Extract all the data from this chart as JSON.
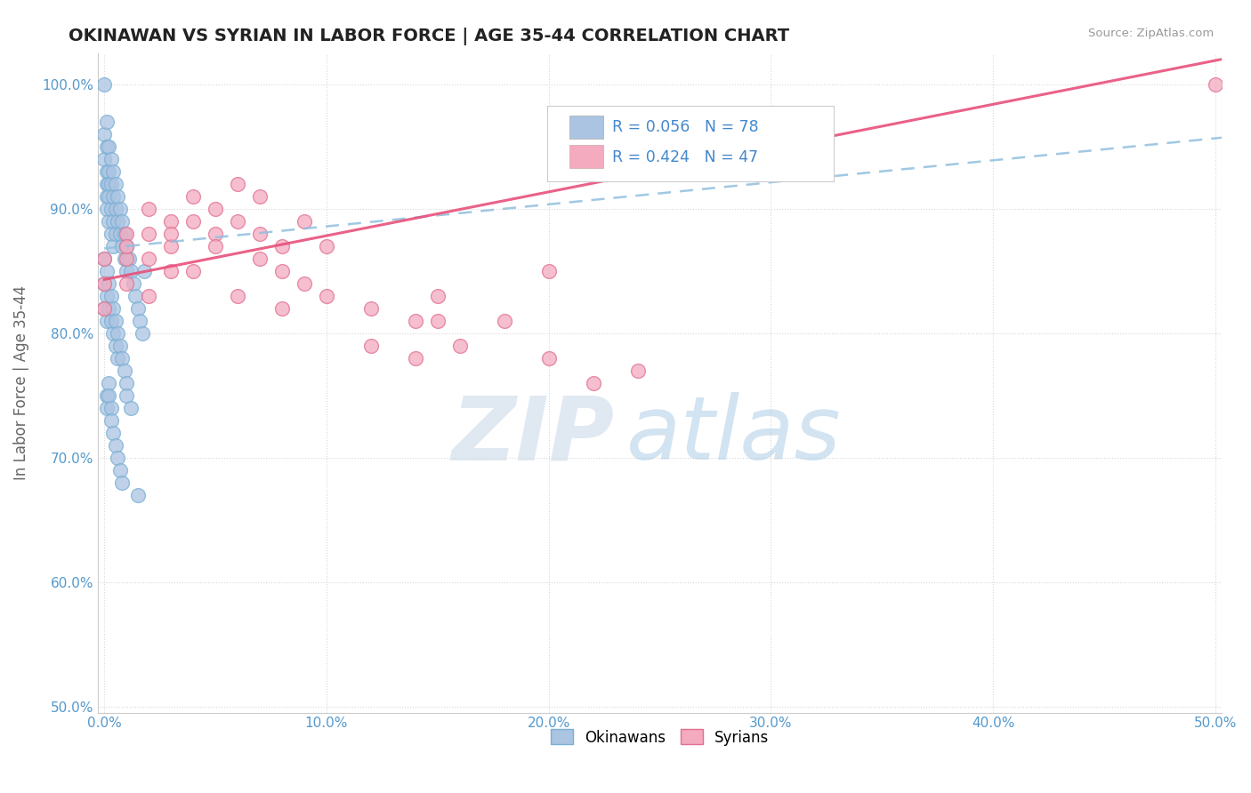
{
  "title": "OKINAWAN VS SYRIAN IN LABOR FORCE | AGE 35-44 CORRELATION CHART",
  "source": "Source: ZipAtlas.com",
  "ylabel": "In Labor Force | Age 35-44",
  "okinawan_color": "#aac4e2",
  "okinawan_edge": "#7aafd4",
  "syrian_color": "#f4aabf",
  "syrian_edge": "#e07090",
  "okinawan_line_color": "#90bfdf",
  "syrian_line_color": "#e8507a",
  "R_okinawan": 0.056,
  "N_okinawan": 78,
  "R_syrian": 0.424,
  "N_syrian": 47,
  "xlim": [
    -0.003,
    0.503
  ],
  "ylim": [
    0.495,
    1.025
  ],
  "x_ticks": [
    0.0,
    0.1,
    0.2,
    0.3,
    0.4,
    0.5
  ],
  "y_ticks": [
    0.5,
    0.6,
    0.7,
    0.8,
    0.9,
    1.0
  ],
  "watermark_zip": "ZIP",
  "watermark_atlas": "atlas",
  "ok_x": [
    0.0,
    0.0,
    0.0,
    0.001,
    0.001,
    0.001,
    0.001,
    0.001,
    0.001,
    0.002,
    0.002,
    0.002,
    0.002,
    0.002,
    0.003,
    0.003,
    0.003,
    0.003,
    0.004,
    0.004,
    0.004,
    0.004,
    0.005,
    0.005,
    0.005,
    0.006,
    0.006,
    0.007,
    0.007,
    0.008,
    0.008,
    0.009,
    0.009,
    0.01,
    0.01,
    0.011,
    0.012,
    0.013,
    0.014,
    0.015,
    0.016,
    0.017,
    0.018,
    0.0,
    0.0,
    0.0,
    0.001,
    0.001,
    0.001,
    0.002,
    0.002,
    0.003,
    0.003,
    0.004,
    0.004,
    0.005,
    0.005,
    0.006,
    0.006,
    0.007,
    0.008,
    0.009,
    0.01,
    0.001,
    0.001,
    0.002,
    0.002,
    0.003,
    0.003,
    0.004,
    0.005,
    0.006,
    0.007,
    0.008,
    0.01,
    0.012,
    0.015
  ],
  "ok_y": [
    1.0,
    0.96,
    0.94,
    0.97,
    0.95,
    0.93,
    0.92,
    0.91,
    0.9,
    0.95,
    0.93,
    0.92,
    0.91,
    0.89,
    0.94,
    0.92,
    0.9,
    0.88,
    0.93,
    0.91,
    0.89,
    0.87,
    0.92,
    0.9,
    0.88,
    0.91,
    0.89,
    0.9,
    0.88,
    0.89,
    0.87,
    0.88,
    0.86,
    0.87,
    0.85,
    0.86,
    0.85,
    0.84,
    0.83,
    0.82,
    0.81,
    0.8,
    0.85,
    0.86,
    0.84,
    0.82,
    0.85,
    0.83,
    0.81,
    0.84,
    0.82,
    0.83,
    0.81,
    0.82,
    0.8,
    0.81,
    0.79,
    0.8,
    0.78,
    0.79,
    0.78,
    0.77,
    0.76,
    0.75,
    0.74,
    0.76,
    0.75,
    0.74,
    0.73,
    0.72,
    0.71,
    0.7,
    0.69,
    0.68,
    0.75,
    0.74,
    0.67
  ],
  "sy_x": [
    0.0,
    0.0,
    0.0,
    0.01,
    0.01,
    0.01,
    0.02,
    0.02,
    0.02,
    0.03,
    0.03,
    0.03,
    0.04,
    0.04,
    0.05,
    0.05,
    0.06,
    0.06,
    0.07,
    0.07,
    0.08,
    0.08,
    0.09,
    0.1,
    0.12,
    0.14,
    0.15,
    0.16,
    0.18,
    0.2,
    0.22,
    0.24,
    0.01,
    0.02,
    0.03,
    0.04,
    0.05,
    0.06,
    0.07,
    0.08,
    0.09,
    0.1,
    0.12,
    0.14,
    0.15,
    0.2,
    0.5
  ],
  "sy_y": [
    0.86,
    0.84,
    0.82,
    0.88,
    0.86,
    0.84,
    0.9,
    0.88,
    0.86,
    0.89,
    0.87,
    0.85,
    0.91,
    0.89,
    0.9,
    0.88,
    0.92,
    0.89,
    0.91,
    0.88,
    0.87,
    0.85,
    0.84,
    0.83,
    0.82,
    0.81,
    0.83,
    0.79,
    0.81,
    0.85,
    0.76,
    0.77,
    0.87,
    0.83,
    0.88,
    0.85,
    0.87,
    0.83,
    0.86,
    0.82,
    0.89,
    0.87,
    0.79,
    0.78,
    0.81,
    0.78,
    1.0
  ],
  "ok_line_x0": 0.0,
  "ok_line_y0": 0.868,
  "ok_line_x1": 0.503,
  "ok_line_y1": 0.957,
  "sy_line_x0": 0.0,
  "sy_line_y0": 0.843,
  "sy_line_x1": 0.503,
  "sy_line_y1": 1.02
}
